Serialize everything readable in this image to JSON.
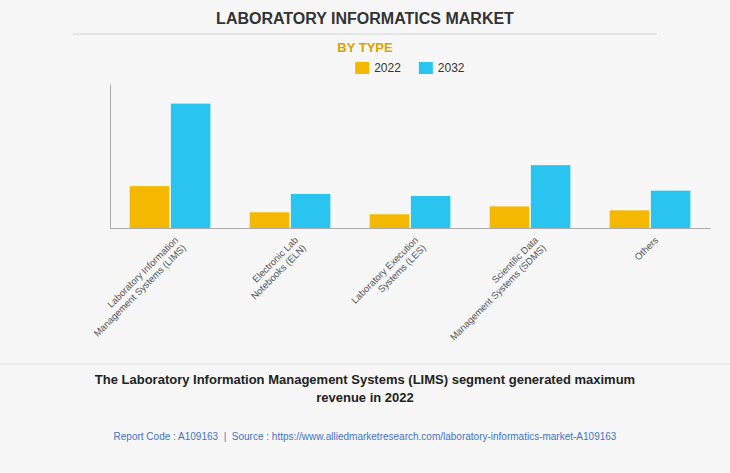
{
  "chart_data": {
    "type": "bar",
    "title": "LABORATORY INFORMATICS MARKET",
    "subtitle": "BY TYPE",
    "categories": [
      "Laboratory Information\nManagement Systems (LIMS)",
      "Electronic Lab\nNotebooks (ELN)",
      "Laboratory Execution\nSystems (LES)",
      "Scientific Data\nManagement Systems (SDMS)",
      "Others"
    ],
    "series": [
      {
        "name": "2022",
        "color": "#F5B800",
        "values": [
          3.2,
          1.2,
          1.05,
          1.65,
          1.35
        ]
      },
      {
        "name": "2032",
        "color": "#29C4F0",
        "values": [
          9.5,
          2.6,
          2.45,
          4.8,
          2.85
        ]
      }
    ],
    "ylim": [
      0,
      11
    ],
    "grid": false,
    "tick_labels": "x",
    "legend": "top",
    "annotations": [
      "The Laboratory Information Management Systems (LIMS) segment generated maximum\nrevenue in 2022",
      "Report Code : A109163  |  Source : https://www.alliedmarketresearch.com/laboratory-informatics-market-A109163"
    ]
  }
}
